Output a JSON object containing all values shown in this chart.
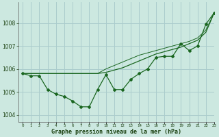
{
  "background_color": "#cce8e0",
  "grid_color": "#aacccc",
  "line_color": "#1a6620",
  "xlabel": "Graphe pression niveau de la mer (hPa)",
  "xlim": [
    -0.5,
    23
  ],
  "ylim": [
    1003.7,
    1008.9
  ],
  "yticks": [
    1004,
    1005,
    1006,
    1007,
    1008
  ],
  "xticks": [
    0,
    1,
    2,
    3,
    4,
    5,
    6,
    7,
    8,
    9,
    10,
    11,
    12,
    13,
    14,
    15,
    16,
    17,
    18,
    19,
    20,
    21,
    22,
    23
  ],
  "series": {
    "main": [
      1005.8,
      1005.7,
      1005.7,
      1005.1,
      1004.9,
      1004.8,
      1004.6,
      1004.35,
      1004.35,
      1005.1,
      1005.75,
      1005.1,
      1005.1,
      1005.55,
      1005.8,
      1006.0,
      1006.5,
      1006.55,
      1006.55,
      1007.1,
      1006.8,
      1007.0,
      1007.95,
      1008.45
    ],
    "line2": [
      1005.8,
      1005.8,
      1005.8,
      1005.8,
      1005.8,
      1005.8,
      1005.8,
      1005.8,
      1005.8,
      1005.8,
      1005.85,
      1005.95,
      1006.05,
      1006.2,
      1006.35,
      1006.5,
      1006.65,
      1006.75,
      1006.85,
      1006.95,
      1007.1,
      1007.25,
      1007.6,
      1008.45
    ],
    "line3": [
      1005.8,
      1005.8,
      1005.8,
      1005.8,
      1005.8,
      1005.8,
      1005.8,
      1005.8,
      1005.8,
      1005.8,
      1006.0,
      1006.15,
      1006.3,
      1006.45,
      1006.6,
      1006.7,
      1006.8,
      1006.9,
      1007.0,
      1007.1,
      1007.2,
      1007.35,
      1007.7,
      1008.45
    ]
  }
}
